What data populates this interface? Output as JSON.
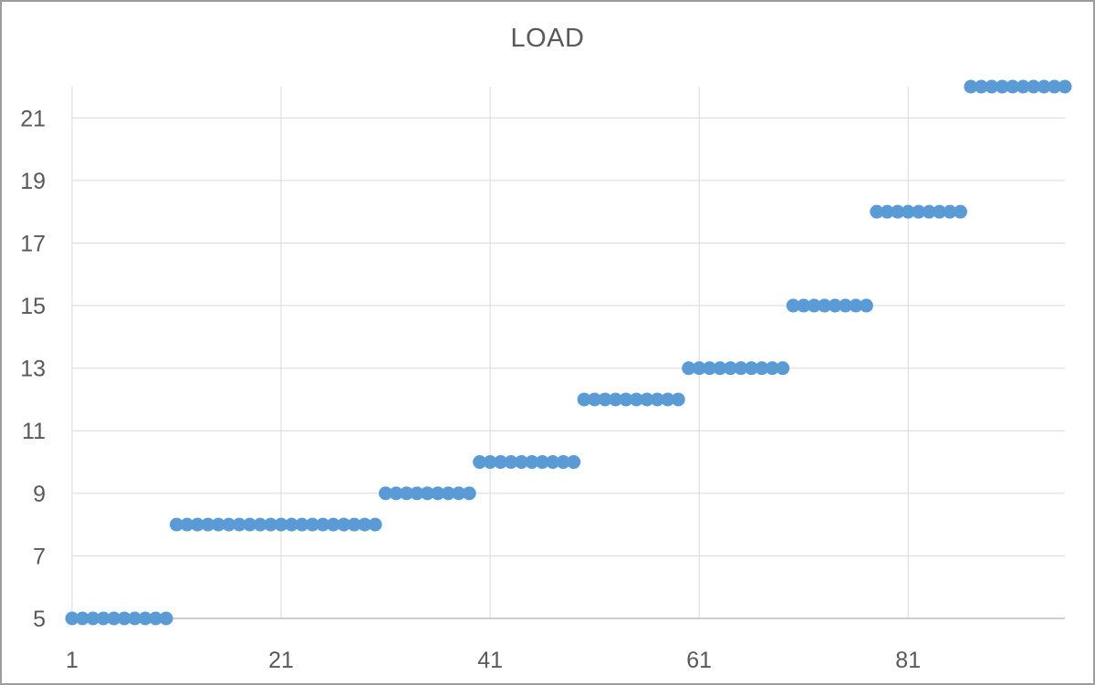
{
  "window": {
    "background": "#ffffff",
    "frame_border_color": "#9d9d9d"
  },
  "chart_data": {
    "type": "line",
    "marker_only": true,
    "title": "LOAD",
    "xlabel": "",
    "ylabel": "",
    "x_start": 1,
    "x_step": 1,
    "values": [
      5,
      5,
      5,
      5,
      5,
      5,
      5,
      5,
      5,
      5,
      8,
      8,
      8,
      8,
      8,
      8,
      8,
      8,
      8,
      8,
      8,
      8,
      8,
      8,
      8,
      8,
      8,
      8,
      8,
      8,
      9,
      9,
      9,
      9,
      9,
      9,
      9,
      9,
      9,
      10,
      10,
      10,
      10,
      10,
      10,
      10,
      10,
      10,
      10,
      12,
      12,
      12,
      12,
      12,
      12,
      12,
      12,
      12,
      12,
      13,
      13,
      13,
      13,
      13,
      13,
      13,
      13,
      13,
      13,
      15,
      15,
      15,
      15,
      15,
      15,
      15,
      15,
      18,
      18,
      18,
      18,
      18,
      18,
      18,
      18,
      18,
      22,
      22,
      22,
      22,
      22,
      22,
      22,
      22,
      22,
      22
    ],
    "segments": [
      {
        "x_from": 1,
        "x_to": 10,
        "y": 5
      },
      {
        "x_from": 11,
        "x_to": 30,
        "y": 8
      },
      {
        "x_from": 31,
        "x_to": 39,
        "y": 9
      },
      {
        "x_from": 40,
        "x_to": 49,
        "y": 10
      },
      {
        "x_from": 50,
        "x_to": 59,
        "y": 12
      },
      {
        "x_from": 60,
        "x_to": 69,
        "y": 13
      },
      {
        "x_from": 70,
        "x_to": 77,
        "y": 15
      },
      {
        "x_from": 78,
        "x_to": 86,
        "y": 18
      },
      {
        "x_from": 87,
        "x_to": 96,
        "y": 22
      }
    ],
    "x_ticks": [
      "1",
      "21",
      "41",
      "61",
      "81"
    ],
    "y_ticks": [
      "5",
      "7",
      "9",
      "11",
      "13",
      "15",
      "17",
      "19",
      "21"
    ],
    "xlim": [
      1,
      96
    ],
    "ylim": [
      5,
      22
    ],
    "grid": true,
    "legend": false,
    "marker_color": "#5b9bd5",
    "marker_radius": 7.5,
    "gridline_color": "#d9d9d9",
    "axis_line_color": "#bfbfbf",
    "text_color": "#595959"
  }
}
